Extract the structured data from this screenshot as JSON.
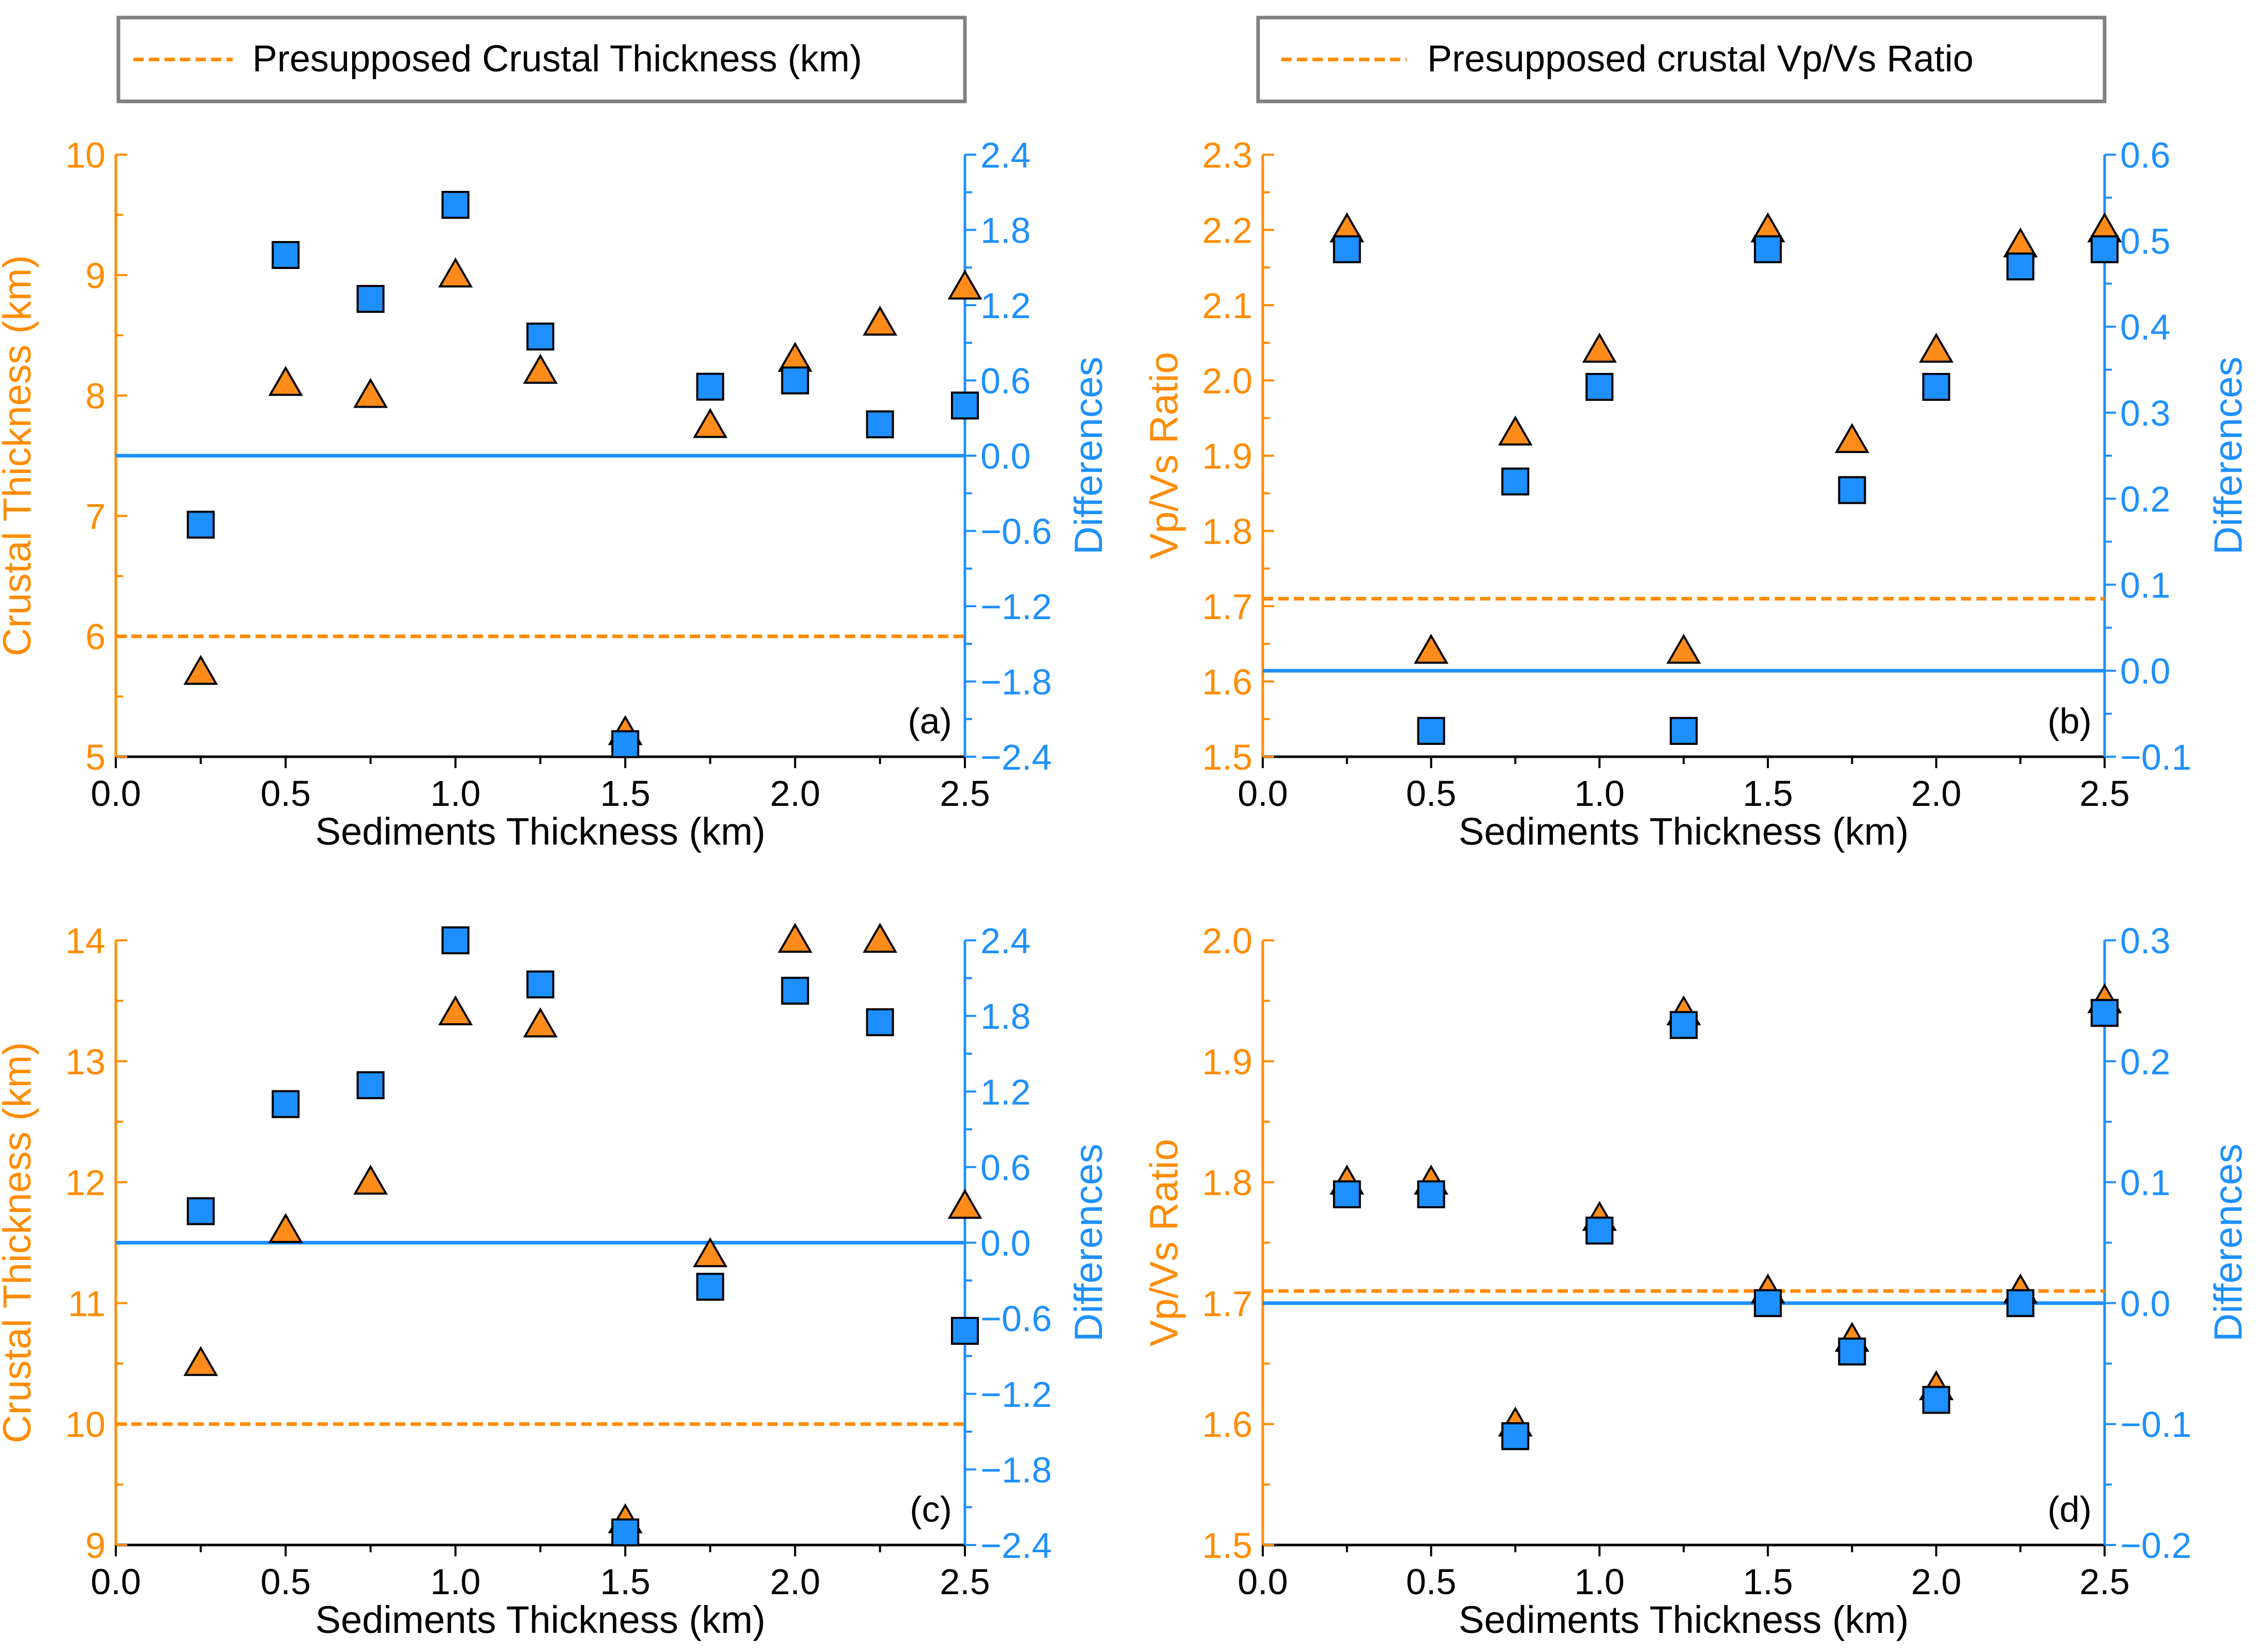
{
  "colors": {
    "orange": "#ff8c00",
    "blue": "#1e90ff",
    "marker_orange": "#ff8c1a",
    "marker_blue": "#1e8fff",
    "black": "#000000",
    "legend_border": "#808080"
  },
  "legends": [
    {
      "label": "Presupposed Crustal Thickness (km)"
    },
    {
      "label": "Presupposed crustal Vp/Vs Ratio"
    }
  ],
  "chart_data": [
    {
      "type": "scatter",
      "panel_label": "(a)",
      "xlabel": "Sediments Thickness (km)",
      "ylabel": "Crustal Thickness (km)",
      "y2label": "Differences",
      "xlim": [
        0,
        2.5
      ],
      "ylim": [
        5,
        10
      ],
      "y2lim": [
        -2.4,
        2.4
      ],
      "xticks": [
        "0.0",
        "0.5",
        "1.0",
        "1.5",
        "2.0",
        "2.5"
      ],
      "yticks": [
        "5",
        "6",
        "7",
        "8",
        "9",
        "10"
      ],
      "y2ticks": [
        "-2.4",
        "-1.8",
        "-1.2",
        "-0.6",
        "0.0",
        "0.6",
        "1.2",
        "1.8",
        "2.4"
      ],
      "presupposed": 6,
      "zero_line": 0,
      "x": [
        0.25,
        0.5,
        0.75,
        1.0,
        1.25,
        1.5,
        1.75,
        2.0,
        2.25,
        2.5
      ],
      "series": [
        {
          "name": "Crustal Thickness",
          "marker": "triangle",
          "axis": "left",
          "values": [
            5.7,
            8.1,
            8.0,
            9.0,
            8.2,
            5.2,
            7.75,
            8.3,
            8.6,
            8.9
          ]
        },
        {
          "name": "Differences",
          "marker": "square",
          "axis": "right",
          "values": [
            -0.55,
            1.6,
            1.25,
            2.0,
            0.95,
            -2.3,
            0.55,
            0.6,
            0.25,
            0.4
          ]
        }
      ]
    },
    {
      "type": "scatter",
      "panel_label": "(b)",
      "xlabel": "Sediments Thickness (km)",
      "ylabel": "Vp/Vs Ratio",
      "y2label": "Differences",
      "xlim": [
        0,
        2.5
      ],
      "ylim": [
        1.5,
        2.3
      ],
      "y2lim": [
        -0.1,
        0.6
      ],
      "xticks": [
        "0.0",
        "0.5",
        "1.0",
        "1.5",
        "2.0",
        "2.5"
      ],
      "yticks": [
        "1.5",
        "1.6",
        "1.7",
        "1.8",
        "1.9",
        "2.0",
        "2.1",
        "2.2",
        "2.3"
      ],
      "y2ticks": [
        "-0.1",
        "0.0",
        "0.1",
        "0.2",
        "0.3",
        "0.4",
        "0.5",
        "0.6"
      ],
      "presupposed": 1.71,
      "zero_line": 0,
      "x": [
        0.25,
        0.5,
        0.75,
        1.0,
        1.25,
        1.5,
        1.75,
        2.0,
        2.25,
        2.5
      ],
      "series": [
        {
          "name": "Vp/Vs Ratio",
          "marker": "triangle",
          "axis": "left",
          "values": [
            2.2,
            1.64,
            1.93,
            2.04,
            1.64,
            2.2,
            1.92,
            2.04,
            2.18,
            2.2
          ]
        },
        {
          "name": "Differences",
          "marker": "square",
          "axis": "right",
          "values": [
            0.49,
            -0.07,
            0.22,
            0.33,
            -0.07,
            0.49,
            0.21,
            0.33,
            0.47,
            0.49
          ]
        }
      ]
    },
    {
      "type": "scatter",
      "panel_label": "(c)",
      "xlabel": "Sediments Thickness (km)",
      "ylabel": "Crustal Thickness (km)",
      "y2label": "Differences",
      "xlim": [
        0,
        2.5
      ],
      "ylim": [
        9,
        14
      ],
      "y2lim": [
        -2.4,
        2.4
      ],
      "xticks": [
        "0.0",
        "0.5",
        "1.0",
        "1.5",
        "2.0",
        "2.5"
      ],
      "yticks": [
        "9",
        "10",
        "11",
        "12",
        "13",
        "14"
      ],
      "y2ticks": [
        "-2.4",
        "-1.8",
        "-1.2",
        "-0.6",
        "0.0",
        "0.6",
        "1.2",
        "1.8",
        "2.4"
      ],
      "presupposed": 10,
      "zero_line": 0,
      "x": [
        0.25,
        0.5,
        0.75,
        1.0,
        1.25,
        1.5,
        1.75,
        2.0,
        2.25,
        2.5
      ],
      "series": [
        {
          "name": "Crustal Thickness",
          "marker": "triangle",
          "axis": "left",
          "values": [
            10.5,
            11.6,
            12.0,
            13.4,
            13.3,
            9.2,
            11.4,
            14.0,
            14.0,
            11.8
          ]
        },
        {
          "name": "Differences",
          "marker": "square",
          "axis": "right",
          "values": [
            0.25,
            1.1,
            1.25,
            2.4,
            2.05,
            -2.3,
            -0.35,
            2.0,
            1.75,
            -0.7
          ]
        }
      ]
    },
    {
      "type": "scatter",
      "panel_label": "(d)",
      "xlabel": "Sediments Thickness (km)",
      "ylabel": "Vp/Vs Ratio",
      "y2label": "Differences",
      "xlim": [
        0,
        2.5
      ],
      "ylim": [
        1.5,
        2.0
      ],
      "y2lim": [
        -0.2,
        0.3
      ],
      "xticks": [
        "0.0",
        "0.5",
        "1.0",
        "1.5",
        "2.0",
        "2.5"
      ],
      "yticks": [
        "1.5",
        "1.6",
        "1.7",
        "1.8",
        "1.9",
        "2.0"
      ],
      "y2ticks": [
        "-0.2",
        "-0.1",
        "0.0",
        "0.1",
        "0.2",
        "0.3"
      ],
      "presupposed": 1.71,
      "zero_line": 0,
      "x": [
        0.25,
        0.5,
        0.75,
        1.0,
        1.25,
        1.5,
        1.75,
        2.0,
        2.25,
        2.5
      ],
      "series": [
        {
          "name": "Vp/Vs Ratio",
          "marker": "triangle",
          "axis": "left",
          "values": [
            1.8,
            1.8,
            1.6,
            1.77,
            1.94,
            1.71,
            1.67,
            1.63,
            1.71,
            1.95
          ]
        },
        {
          "name": "Differences",
          "marker": "square",
          "axis": "right",
          "values": [
            0.09,
            0.09,
            -0.11,
            0.06,
            0.23,
            0.0,
            -0.04,
            -0.08,
            0.0,
            0.24
          ]
        }
      ]
    }
  ]
}
